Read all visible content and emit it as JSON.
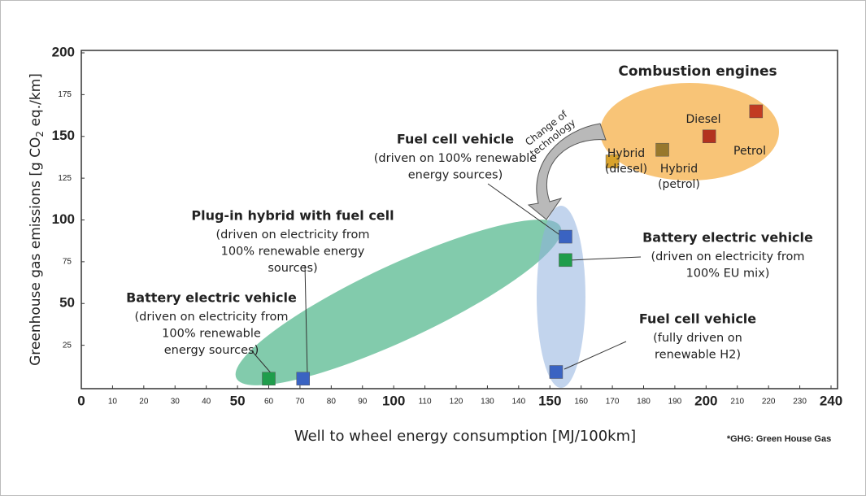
{
  "chart_data": {
    "type": "scatter",
    "x": [
      60,
      71,
      152,
      155,
      155,
      170,
      186,
      201,
      216
    ],
    "values": [
      5,
      5,
      9,
      76,
      90,
      135,
      142,
      150,
      165
    ],
    "colors": [
      "#1f9d4b",
      "#3a63c2",
      "#3a63c2",
      "#1f9d4b",
      "#3a63c2",
      "#d8a22c",
      "#98782c",
      "#b3321f",
      "#c23b22"
    ],
    "xlim": [
      0,
      240
    ],
    "ylim": [
      0,
      200
    ],
    "xticks": [
      0,
      10,
      20,
      30,
      40,
      50,
      60,
      70,
      80,
      90,
      100,
      110,
      120,
      130,
      140,
      150,
      160,
      170,
      180,
      190,
      200,
      210,
      220,
      230,
      240
    ],
    "yticks": [
      25,
      50,
      75,
      100,
      125,
      150,
      175,
      200
    ],
    "xlabel": "Well to wheel energy consumption [MJ/100km]",
    "ylabel": [
      "Greenhouse gas emissions [g CO",
      "2",
      " eq./km]"
    ],
    "annotations": [
      {
        "title": "Combustion engines",
        "lines": []
      },
      {
        "title": "Fuel cell vehicle",
        "lines": [
          "(driven on 100% renewable",
          "energy sources)"
        ]
      },
      {
        "title": "Plug-in hybrid with fuel cell",
        "lines": [
          "(driven on electricity from",
          "100% renewable energy",
          "sources)"
        ]
      },
      {
        "title": "Battery electric vehicle",
        "lines": [
          "(driven on electricity from",
          "100% EU mix)"
        ]
      },
      {
        "title": "Battery electric vehicle",
        "lines": [
          "(driven on electricity from",
          "100% renewable",
          "energy sources)"
        ]
      },
      {
        "title": "Fuel cell vehicle",
        "lines": [
          "(fully driven on",
          "renewable H2)"
        ]
      }
    ],
    "point_labels": [
      [
        "Hybrid",
        "(diesel)"
      ],
      [
        "Diesel"
      ],
      [
        "Petrol"
      ],
      [
        "Hybrid",
        "(petrol)"
      ]
    ],
    "arrow_text": [
      "Change of",
      "technology"
    ],
    "footnote": "*GHG: Green House Gas"
  }
}
